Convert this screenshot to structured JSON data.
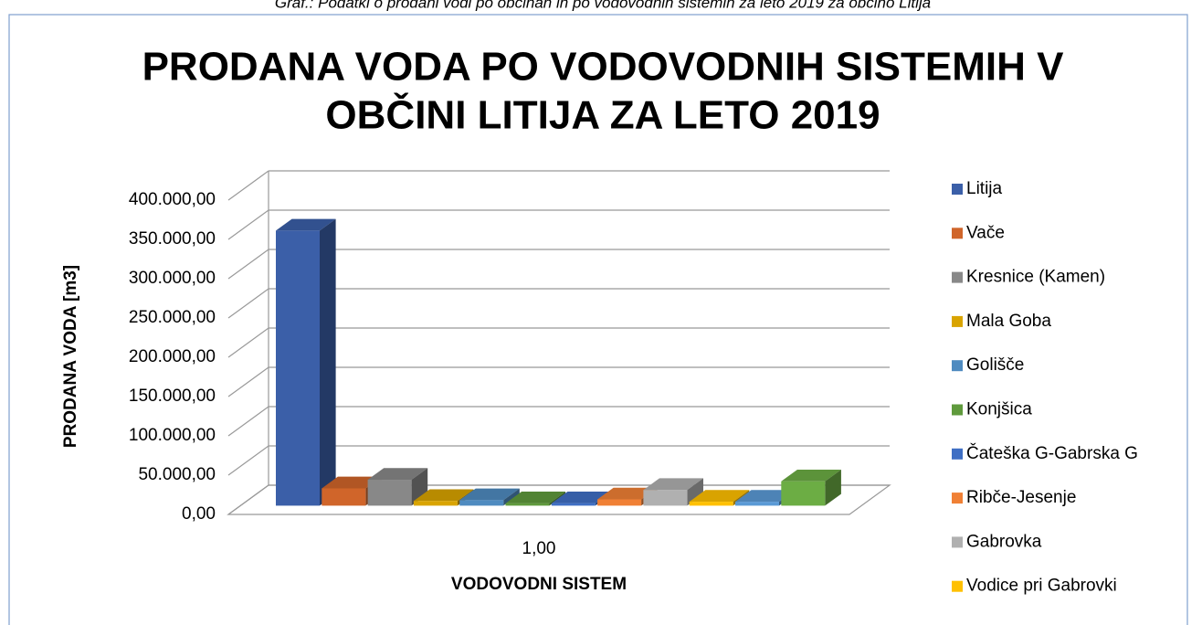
{
  "caption": "Graf.: Podatki o prodani vodi po občinah in po vodovodnih sistemih za leto 2019 za občino Litija",
  "chart_data": {
    "type": "bar3d",
    "title": [
      "PRODANA VODA PO VODOVODNIH SISTEMIH V",
      "OBČINI LITIJA ZA LETO 2019"
    ],
    "x_label": "VODOVODNI SISTEM",
    "y_label": "PRODANA VODA [m3]",
    "categories": [
      "1,00"
    ],
    "ylim": [
      0,
      400000
    ],
    "yticks": [
      {
        "value": 0,
        "label": "0,00"
      },
      {
        "value": 50000,
        "label": "50.000,00"
      },
      {
        "value": 100000,
        "label": "100.000,00"
      },
      {
        "value": 150000,
        "label": "150.000,00"
      },
      {
        "value": 200000,
        "label": "200.000,00"
      },
      {
        "value": 250000,
        "label": "250.000,00"
      },
      {
        "value": 300000,
        "label": "300.000,00"
      },
      {
        "value": 350000,
        "label": "350.000,00"
      },
      {
        "value": 400000,
        "label": "400.000,00"
      }
    ],
    "grid": true,
    "legend": "right",
    "series": [
      {
        "name": "Litija",
        "color": "#3b5fa8",
        "values": [
          350000
        ]
      },
      {
        "name": "Vače",
        "color": "#d0652a",
        "values": [
          22000
        ]
      },
      {
        "name": "Kresnice (Kamen)",
        "color": "#888888",
        "values": [
          33000
        ]
      },
      {
        "name": "Mala Goba",
        "color": "#d9a400",
        "values": [
          6000
        ]
      },
      {
        "name": "Golišče",
        "color": "#4f8bc0",
        "values": [
          7000
        ]
      },
      {
        "name": "Konjšica",
        "color": "#5f9a3c",
        "values": [
          3000
        ]
      },
      {
        "name": "Čateška G-Gabrska G",
        "color": "#3f6fc4",
        "values": [
          3000
        ]
      },
      {
        "name": "Ribče-Jesenje",
        "color": "#f08035",
        "values": [
          8000
        ]
      },
      {
        "name": "Gabrovka",
        "color": "#b0b0b0",
        "values": [
          20000
        ]
      },
      {
        "name": "Vodice pri Gabrovki",
        "color": "#ffc000",
        "values": [
          5000
        ]
      },
      {
        "name": null,
        "color": "#5a9ad6",
        "values": [
          5000
        ]
      },
      {
        "name": null,
        "color": "#6cad44",
        "values": [
          31000
        ]
      }
    ]
  }
}
